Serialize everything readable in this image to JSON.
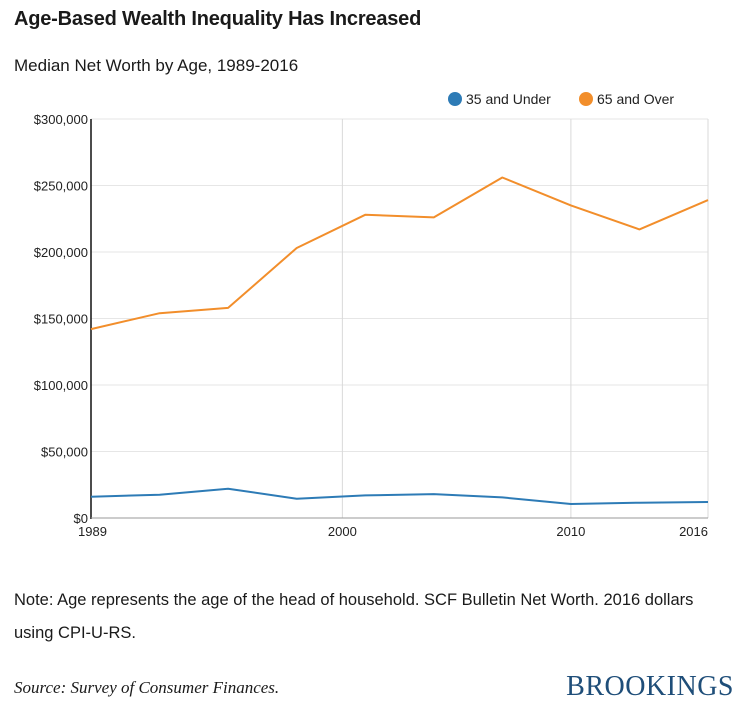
{
  "header": {
    "title": "Age-Based Wealth Inequality Has Increased",
    "subtitle": "Median Net Worth by Age, 1989-2016"
  },
  "chart_data": {
    "type": "line",
    "title": "Median Net Worth by Age, 1989-2016",
    "xlabel": "",
    "ylabel": "",
    "x": [
      1989,
      1992,
      1995,
      1998,
      2001,
      2004,
      2007,
      2010,
      2013,
      2016
    ],
    "xlim": [
      1989,
      2016
    ],
    "ylim": [
      0,
      300000
    ],
    "xticks": [
      1989,
      2000,
      2010,
      2016
    ],
    "xtick_labels": [
      "1989",
      "2000",
      "2010",
      "2016"
    ],
    "yticks": [
      0,
      50000,
      100000,
      150000,
      200000,
      250000,
      300000
    ],
    "ytick_labels": [
      "$0",
      "$50,000",
      "$100,000",
      "$150,000",
      "$200,000",
      "$250,000",
      "$300,000"
    ],
    "grid": true,
    "legend_position": "top-right",
    "series": [
      {
        "name": "35 and Under",
        "color": "#2d7bb6",
        "values": [
          16000,
          17500,
          22000,
          14500,
          17000,
          18000,
          15500,
          10500,
          11500,
          12000
        ]
      },
      {
        "name": "65 and Over",
        "color": "#f28e2b",
        "values": [
          142000,
          154000,
          158000,
          203000,
          228000,
          226000,
          256000,
          235000,
          217000,
          239000
        ]
      }
    ]
  },
  "footer": {
    "note": "Note: Age represents the age of the head of household. SCF Bulletin Net Worth. 2016 dollars using CPI-U-RS.",
    "source": "Source: Survey of Consumer Finances.",
    "brand": "BROOKINGS"
  }
}
